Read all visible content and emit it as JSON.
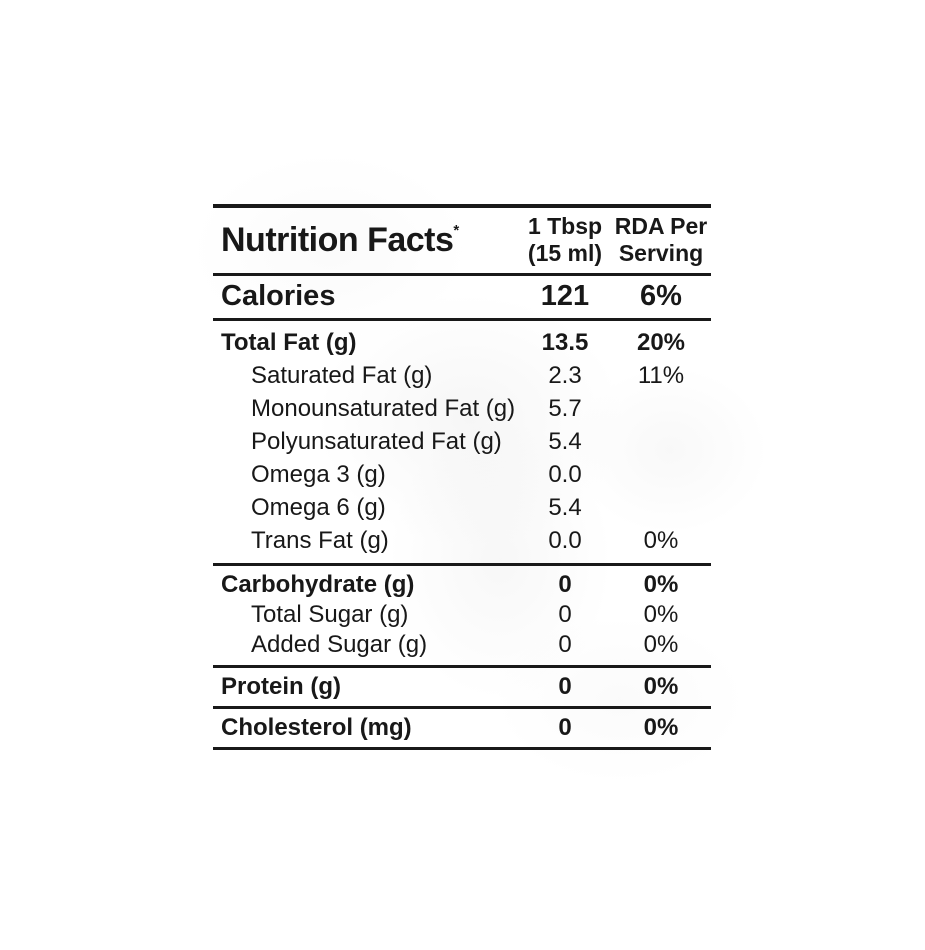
{
  "colors": {
    "text": "#181818",
    "rule": "#191919",
    "background": "#ffffff"
  },
  "header": {
    "title": "Nutrition Facts",
    "footnote_mark": "*",
    "serving_col_line1": "1 Tbsp",
    "serving_col_line2": "(15 ml)",
    "rda_col_line1": "RDA Per",
    "rda_col_line2": "Serving"
  },
  "rows": {
    "calories": {
      "label": "Calories",
      "value": "121",
      "rda": "6%"
    },
    "total_fat": {
      "label": "Total Fat (g)",
      "value": "13.5",
      "rda": "20%"
    },
    "saturated_fat": {
      "label": "Saturated Fat (g)",
      "value": "2.3",
      "rda": "11%"
    },
    "monounsaturated_fat": {
      "label": "Monounsaturated Fat (g)",
      "value": "5.7",
      "rda": ""
    },
    "polyunsaturated_fat": {
      "label": "Polyunsaturated Fat (g)",
      "value": "5.4",
      "rda": ""
    },
    "omega_3": {
      "label": "Omega 3 (g)",
      "value": "0.0",
      "rda": ""
    },
    "omega_6": {
      "label": "Omega 6 (g)",
      "value": "5.4",
      "rda": ""
    },
    "trans_fat": {
      "label": "Trans Fat (g)",
      "value": "0.0",
      "rda": "0%"
    },
    "carbohydrate": {
      "label": "Carbohydrate (g)",
      "value": "0",
      "rda": "0%"
    },
    "total_sugar": {
      "label": "Total Sugar (g)",
      "value": "0",
      "rda": "0%"
    },
    "added_sugar": {
      "label": "Added Sugar (g)",
      "value": "0",
      "rda": "0%"
    },
    "protein": {
      "label": "Protein (g)",
      "value": "0",
      "rda": "0%"
    },
    "cholesterol": {
      "label": "Cholesterol (mg)",
      "value": "0",
      "rda": "0%"
    }
  }
}
